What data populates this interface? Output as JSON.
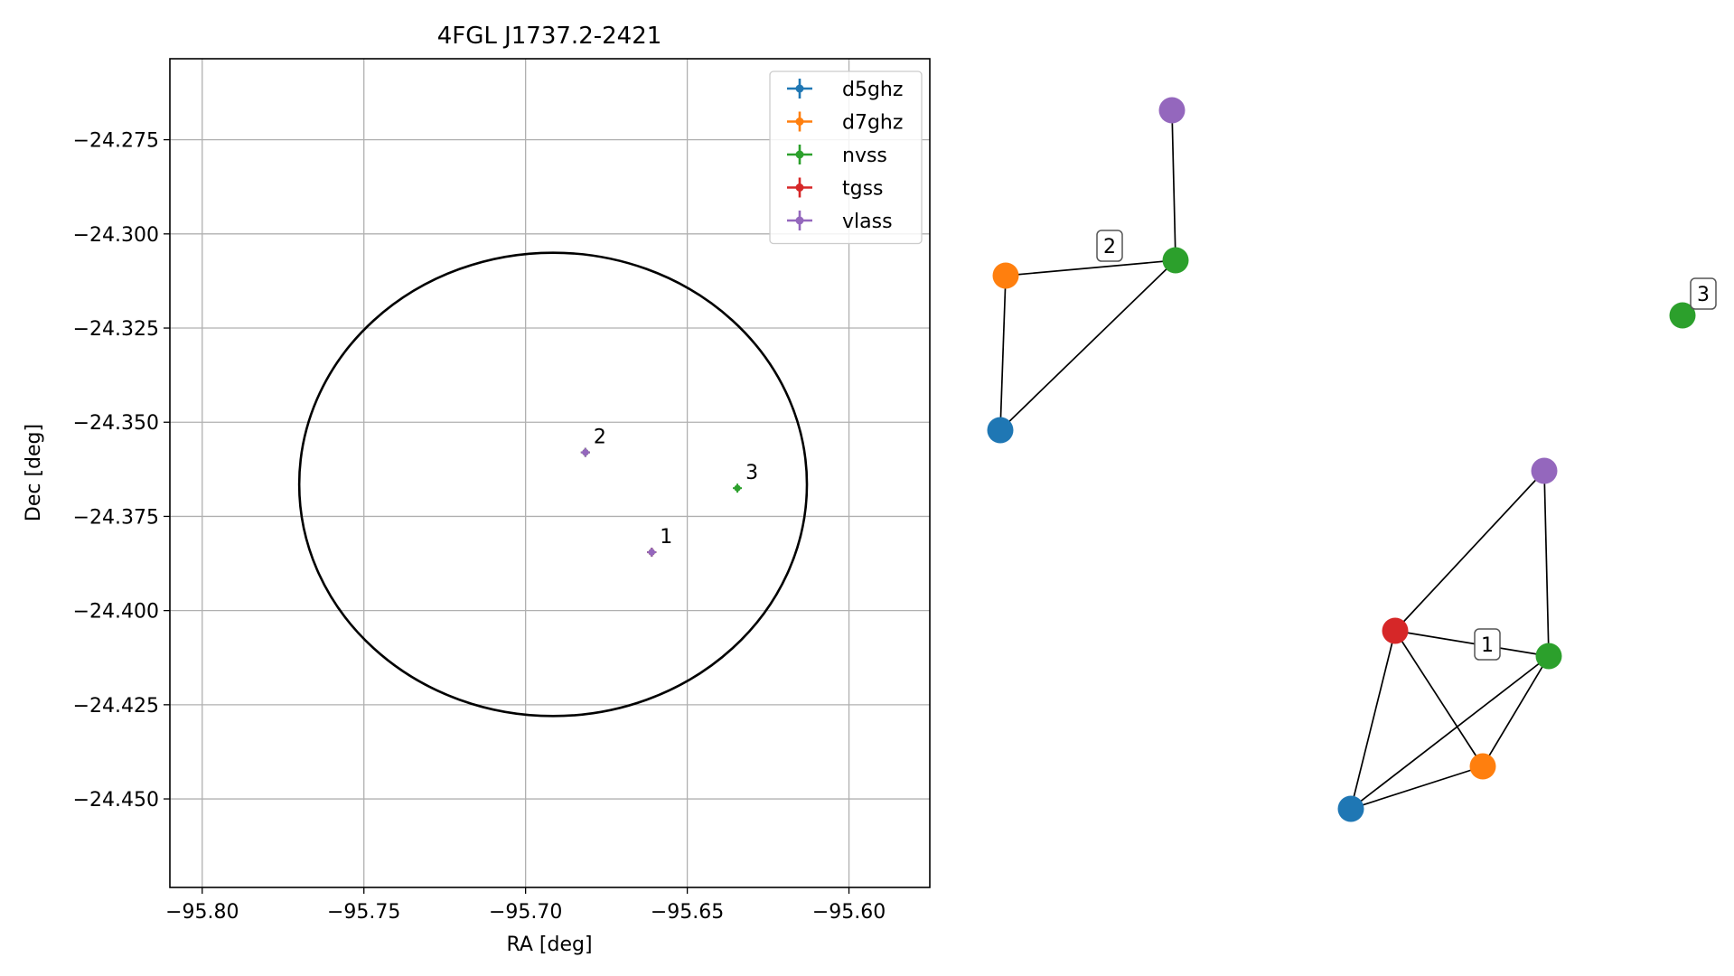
{
  "chart_data": [
    {
      "type": "scatter",
      "title": "4FGL J1737.2-2421",
      "xlabel": "RA [deg]",
      "ylabel": "Dec [deg]",
      "xlim": [
        -95.81,
        -95.575
      ],
      "ylim": [
        -24.4735,
        -24.2535
      ],
      "xticks": [
        {
          "v": -95.8,
          "label": "−95.80"
        },
        {
          "v": -95.75,
          "label": "−95.75"
        },
        {
          "v": -95.7,
          "label": "−95.70"
        },
        {
          "v": -95.65,
          "label": "−95.65"
        },
        {
          "v": -95.6,
          "label": "−95.60"
        }
      ],
      "yticks": [
        {
          "v": -24.275,
          "label": "−24.275"
        },
        {
          "v": -24.3,
          "label": "−24.300"
        },
        {
          "v": -24.325,
          "label": "−24.325"
        },
        {
          "v": -24.35,
          "label": "−24.350"
        },
        {
          "v": -24.375,
          "label": "−24.375"
        },
        {
          "v": -24.4,
          "label": "−24.400"
        },
        {
          "v": -24.425,
          "label": "−24.425"
        },
        {
          "v": -24.45,
          "label": "−24.450"
        }
      ],
      "grid": true,
      "legend_position": "upper right",
      "ellipse": {
        "center": [
          -95.6915,
          -24.3665
        ],
        "semi_axes": [
          0.0785,
          0.0615
        ],
        "color": "#000000"
      },
      "series": [
        {
          "name": "d5ghz",
          "color": "#1f77b4",
          "points": [
            {
              "x": -95.661,
              "y": -24.3845
            },
            {
              "x": -95.6815,
              "y": -24.358
            }
          ]
        },
        {
          "name": "d7ghz",
          "color": "#ff7f0e",
          "points": [
            {
              "x": -95.661,
              "y": -24.3845
            },
            {
              "x": -95.6815,
              "y": -24.358
            }
          ]
        },
        {
          "name": "nvss",
          "color": "#2ca02c",
          "points": [
            {
              "x": -95.661,
              "y": -24.3845
            },
            {
              "x": -95.6815,
              "y": -24.358
            },
            {
              "x": -95.6345,
              "y": -24.3675
            }
          ]
        },
        {
          "name": "tgss",
          "color": "#d62728",
          "points": [
            {
              "x": -95.661,
              "y": -24.3845
            }
          ]
        },
        {
          "name": "vlass",
          "color": "#9467bd",
          "points": [
            {
              "x": -95.661,
              "y": -24.3845
            },
            {
              "x": -95.6815,
              "y": -24.358
            }
          ]
        }
      ],
      "annotations": [
        {
          "text": "1",
          "x": -95.661,
          "y": -24.3845
        },
        {
          "text": "2",
          "x": -95.6815,
          "y": -24.358
        },
        {
          "text": "3",
          "x": -95.6345,
          "y": -24.3675
        }
      ]
    },
    {
      "type": "network",
      "groups": [
        {
          "label": "1",
          "nodes": [
            {
              "id": "vlass",
              "color": "#9467bd"
            },
            {
              "id": "tgss",
              "color": "#d62728"
            },
            {
              "id": "nvss",
              "color": "#2ca02c"
            },
            {
              "id": "d7ghz",
              "color": "#ff7f0e"
            },
            {
              "id": "d5ghz",
              "color": "#1f77b4"
            }
          ],
          "edges": [
            [
              "vlass",
              "tgss"
            ],
            [
              "vlass",
              "nvss"
            ],
            [
              "tgss",
              "nvss"
            ],
            [
              "tgss",
              "d7ghz"
            ],
            [
              "tgss",
              "d5ghz"
            ],
            [
              "nvss",
              "d7ghz"
            ],
            [
              "nvss",
              "d5ghz"
            ],
            [
              "d7ghz",
              "d5ghz"
            ]
          ]
        },
        {
          "label": "2",
          "nodes": [
            {
              "id": "vlass",
              "color": "#9467bd"
            },
            {
              "id": "nvss",
              "color": "#2ca02c"
            },
            {
              "id": "d7ghz",
              "color": "#ff7f0e"
            },
            {
              "id": "d5ghz",
              "color": "#1f77b4"
            }
          ],
          "edges": [
            [
              "vlass",
              "nvss"
            ],
            [
              "d7ghz",
              "nvss"
            ],
            [
              "d7ghz",
              "d5ghz"
            ],
            [
              "d5ghz",
              "nvss"
            ]
          ]
        },
        {
          "label": "3",
          "nodes": [
            {
              "id": "nvss",
              "color": "#2ca02c"
            }
          ],
          "edges": []
        }
      ]
    }
  ]
}
